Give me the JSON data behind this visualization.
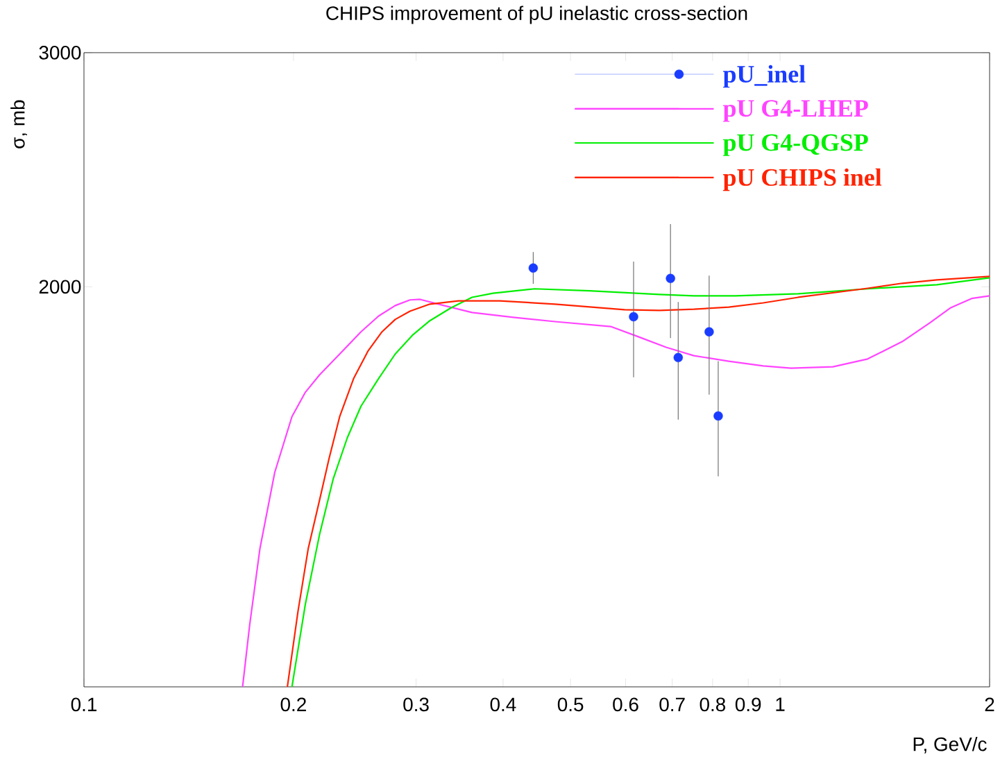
{
  "chart_data": {
    "type": "line",
    "title": "CHIPS improvement of pU inelastic cross-section",
    "xlabel": "P, GeV/c",
    "ylabel": "σ, mb",
    "log": "xy",
    "xlim": [
      0.1,
      2
    ],
    "ylim": [
      1000,
      3000
    ],
    "xticks": [
      0.1,
      0.2,
      0.3,
      0.4,
      0.5,
      0.6,
      0.7,
      0.8,
      0.9,
      1,
      2
    ],
    "yticks": [
      2000,
      3000
    ],
    "legend": "top right",
    "series": [
      {
        "name": "pU_inel",
        "type": "scatter",
        "marker": "circle",
        "color": "#1a3cff",
        "x": [
          0.442,
          0.616,
          0.696,
          0.714,
          0.791,
          0.815
        ],
        "values": [
          2066,
          1899,
          2029,
          1769,
          1850,
          1599
        ],
        "errors": [
          [
            2010,
            2124
          ],
          [
            1710,
            2089
          ],
          [
            1830,
            2229
          ],
          [
            1589,
            1948
          ],
          [
            1659,
            2039
          ],
          [
            1440,
            1758
          ]
        ]
      },
      {
        "name": "pU G4-LHEP",
        "color": "#ff44ff",
        "x": [
          0.169,
          0.173,
          0.179,
          0.188,
          0.199,
          0.208,
          0.218,
          0.233,
          0.25,
          0.265,
          0.28,
          0.294,
          0.304,
          0.329,
          0.361,
          0.414,
          0.475,
          0.571,
          0.626,
          0.686,
          0.752,
          0.844,
          0.946,
          1.037,
          1.191,
          1.336,
          1.498,
          1.642,
          1.759,
          1.885,
          2.0
        ],
        "values": [
          1000,
          1113,
          1271,
          1450,
          1597,
          1666,
          1717,
          1780,
          1850,
          1901,
          1936,
          1955,
          1957,
          1936,
          1913,
          1897,
          1883,
          1867,
          1834,
          1801,
          1775,
          1758,
          1744,
          1737,
          1741,
          1765,
          1819,
          1879,
          1929,
          1960,
          1969
        ]
      },
      {
        "name": "pU G4-QGSP",
        "color": "#00ee00",
        "x": [
          0.199,
          0.208,
          0.218,
          0.228,
          0.239,
          0.25,
          0.265,
          0.28,
          0.297,
          0.314,
          0.337,
          0.361,
          0.387,
          0.444,
          0.533,
          0.671,
          0.752,
          0.863,
          1.062,
          1.336,
          1.68,
          2.0
        ],
        "values": [
          1000,
          1154,
          1302,
          1433,
          1540,
          1626,
          1706,
          1780,
          1841,
          1886,
          1929,
          1964,
          1978,
          1993,
          1986,
          1974,
          1969,
          1969,
          1976,
          1993,
          2007,
          2031
        ]
      },
      {
        "name": "pU CHIPS inel",
        "color": "#ff2200",
        "x": [
          0.196,
          0.203,
          0.21,
          0.218,
          0.225,
          0.233,
          0.244,
          0.256,
          0.268,
          0.28,
          0.294,
          0.314,
          0.345,
          0.396,
          0.475,
          0.598,
          0.671,
          0.752,
          0.844,
          0.946,
          1.062,
          1.336,
          1.498,
          1.68,
          2.0
        ],
        "values": [
          1000,
          1140,
          1271,
          1382,
          1486,
          1597,
          1706,
          1790,
          1850,
          1890,
          1917,
          1941,
          1952,
          1952,
          1941,
          1922,
          1920,
          1924,
          1931,
          1945,
          1964,
          1995,
          2012,
          2024,
          2036
        ]
      }
    ]
  }
}
